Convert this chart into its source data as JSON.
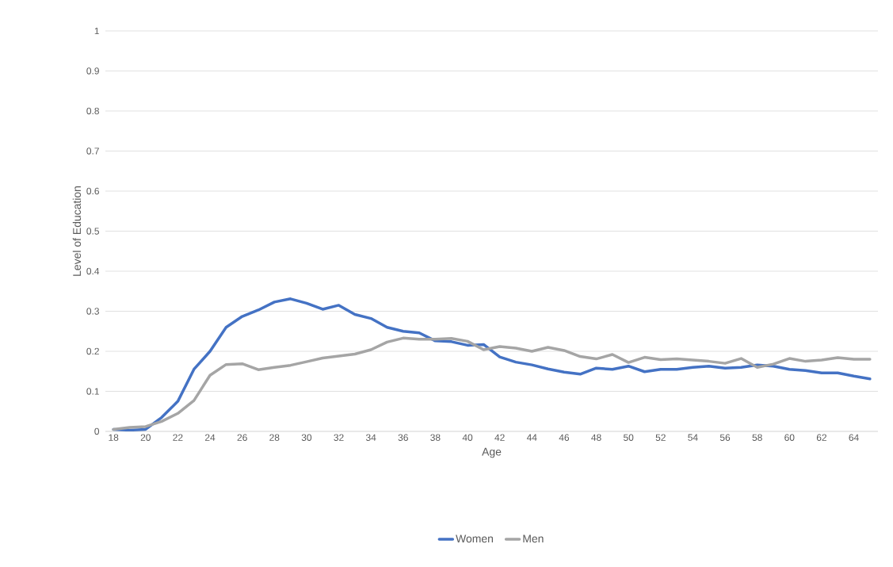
{
  "chart_data": {
    "type": "line",
    "xlabel": "Age",
    "ylabel": "Level of Education",
    "categories": [
      "18",
      null,
      "20",
      null,
      "22",
      null,
      "24",
      null,
      "26",
      null,
      "28",
      null,
      "30",
      null,
      "32",
      null,
      "34",
      null,
      "36",
      null,
      "38",
      null,
      "40",
      null,
      "42",
      null,
      "44",
      null,
      "46",
      null,
      "48",
      null,
      "50",
      null,
      "52",
      null,
      "54",
      null,
      "56",
      null,
      "58",
      null,
      "60",
      null,
      "62",
      null,
      "64",
      null
    ],
    "series": [
      {
        "name": "Women",
        "color": "#4472c4",
        "values": [
          0.005,
          0.003,
          0.005,
          0.035,
          0.075,
          0.155,
          0.2,
          0.26,
          0.287,
          0.303,
          0.323,
          0.331,
          0.32,
          0.305,
          0.315,
          0.292,
          0.282,
          0.26,
          0.25,
          0.246,
          0.226,
          0.224,
          0.215,
          0.217,
          0.186,
          0.173,
          0.166,
          0.156,
          0.148,
          0.143,
          0.158,
          0.155,
          0.163,
          0.149,
          0.155,
          0.155,
          0.16,
          0.163,
          0.158,
          0.16,
          0.166,
          0.163,
          0.155,
          0.152,
          0.146,
          0.146,
          0.138,
          0.131
        ]
      },
      {
        "name": "Men",
        "color": "#a5a5a5",
        "values": [
          0.005,
          0.01,
          0.012,
          0.025,
          0.045,
          0.077,
          0.14,
          0.167,
          0.169,
          0.154,
          0.16,
          0.165,
          0.174,
          0.183,
          0.188,
          0.193,
          0.204,
          0.223,
          0.233,
          0.23,
          0.23,
          0.232,
          0.225,
          0.204,
          0.212,
          0.208,
          0.2,
          0.21,
          0.202,
          0.187,
          0.181,
          0.192,
          0.172,
          0.185,
          0.179,
          0.181,
          0.178,
          0.175,
          0.17,
          0.182,
          0.16,
          0.168,
          0.182,
          0.175,
          0.178,
          0.184,
          0.18,
          0.18
        ]
      }
    ],
    "ylim": [
      0,
      1
    ],
    "yticks": [
      0,
      0.1,
      0.2,
      0.3,
      0.4,
      0.5,
      0.6,
      0.7,
      0.8,
      0.9,
      1
    ],
    "grid": "y",
    "legend": "bottom",
    "marker": "none",
    "line_style": "solid"
  }
}
